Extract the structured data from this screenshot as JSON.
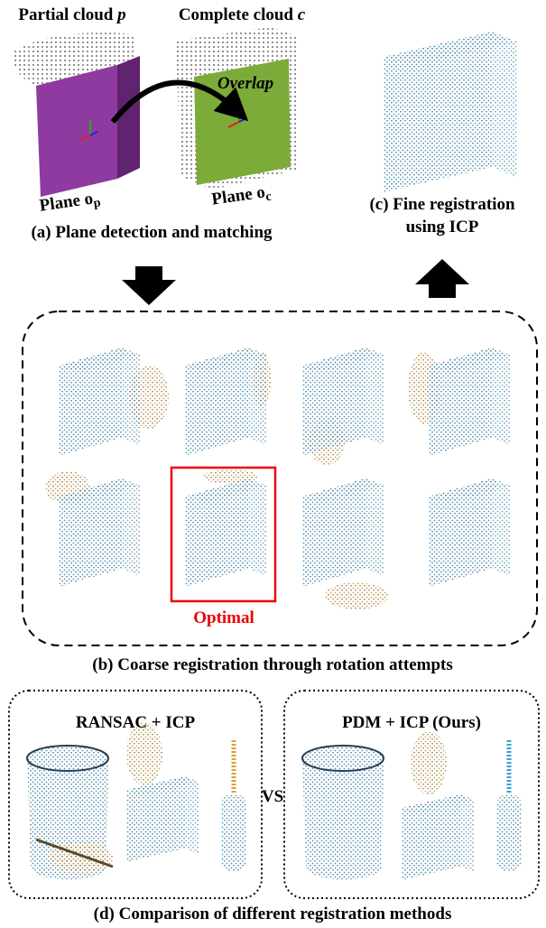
{
  "panel_a": {
    "partial_title": {
      "text": "Partial cloud",
      "symbol": "p"
    },
    "complete_title": {
      "text": "Complete cloud",
      "symbol": "c"
    },
    "overlap": "Overlap",
    "plane_p": {
      "text": "Plane o",
      "subscript": "p"
    },
    "plane_c": {
      "text": "Plane o",
      "subscript": "c"
    },
    "caption": "(a) Plane detection and matching"
  },
  "panel_c": {
    "caption_lines": [
      "(c) Fine registration",
      "using ICP"
    ]
  },
  "panel_b": {
    "optimal": "Optimal",
    "caption": "(b) Coarse registration through rotation attempts"
  },
  "panel_d": {
    "left_title": "RANSAC + ICP",
    "vs": "VS",
    "right_title": "PDM + ICP (Ours)",
    "caption": "(d) Comparison of different registration methods"
  }
}
